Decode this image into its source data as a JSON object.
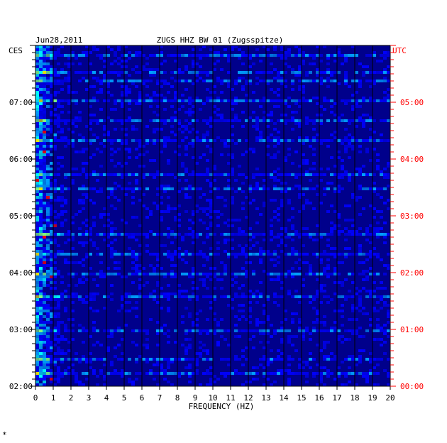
{
  "header": {
    "date": "Jun28,2011",
    "station": "ZUGS HHZ BW 01 (Zugsspitze)",
    "left_tz": "CES",
    "right_tz": "UTC",
    "corner_mark": "*"
  },
  "chart_data": {
    "type": "heatmap",
    "title": "ZUGS HHZ BW 01 (Zugsspitze)",
    "date": "Jun28,2011",
    "xlabel": "FREQUENCY (HZ)",
    "x_ticks": [
      "0",
      "1",
      "2",
      "3",
      "4",
      "5",
      "6",
      "7",
      "8",
      "9",
      "10",
      "11",
      "12",
      "13",
      "14",
      "15",
      "16",
      "17",
      "18",
      "19",
      "20"
    ],
    "xlim": [
      0,
      20
    ],
    "y_left_label": "CES",
    "y_left_ticks": [
      "07:00",
      "06:00",
      "05:00",
      "04:00",
      "03:00",
      "02:00"
    ],
    "y_right_label": "UTC",
    "y_right_ticks": [
      "05:00",
      "04:00",
      "03:00",
      "02:00",
      "01:00",
      "00:00"
    ],
    "ylim_ces_hours": [
      2,
      8
    ],
    "vertical_gridlines_every_hz": 1,
    "colormap": [
      "#00007f",
      "#0000ff",
      "#00a0ff",
      "#00ffff",
      "#80ff80",
      "#ffff00",
      "#ff0000"
    ],
    "colors": {
      "background": "#00008b",
      "grid": "#000000",
      "left_text": "#000000",
      "right_text": "#ff0000"
    }
  }
}
